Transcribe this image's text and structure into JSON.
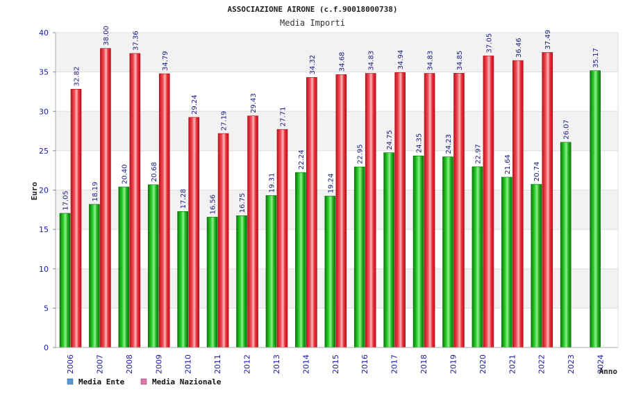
{
  "chart_data": {
    "type": "bar",
    "title": "ASSOCIAZIONE AIRONE (c.f.90018000738)",
    "subtitle": "Media Importi",
    "ylabel": "Euro",
    "xlabel": "Anno",
    "ylim": [
      0,
      40
    ],
    "yticks": [
      "0",
      "5",
      "10",
      "15",
      "20",
      "25",
      "30",
      "35",
      "40"
    ],
    "grid": true,
    "legend_position": "bottom-left",
    "categories": [
      "2006",
      "2007",
      "2008",
      "2009",
      "2010",
      "2011",
      "2012",
      "2013",
      "2014",
      "2015",
      "2016",
      "2017",
      "2018",
      "2019",
      "2020",
      "2021",
      "2022",
      "2023",
      "2024"
    ],
    "series": [
      {
        "name": "Media Ente",
        "color": "#22b222",
        "legend_color": "#5599dd",
        "values": [
          17.05,
          18.19,
          20.4,
          20.68,
          17.28,
          16.56,
          16.75,
          19.31,
          22.24,
          19.24,
          22.95,
          24.75,
          24.35,
          24.23,
          22.97,
          21.64,
          20.74,
          26.07,
          35.17
        ],
        "labels": [
          "17.05",
          "18.19",
          "20.40",
          "20.68",
          "17.28",
          "16.56",
          "16.75",
          "19.31",
          "22.24",
          "19.24",
          "22.95",
          "24.75",
          "24.35",
          "24.23",
          "22.97",
          "21.64",
          "20.74",
          "26.07",
          "35.17"
        ]
      },
      {
        "name": "Media Nazionale",
        "color": "#e8303a",
        "legend_color": "#dd77aa",
        "values": [
          32.82,
          38.0,
          37.36,
          34.79,
          29.24,
          27.19,
          29.43,
          27.71,
          34.32,
          34.68,
          34.83,
          34.94,
          34.83,
          34.85,
          37.05,
          36.46,
          37.49,
          null,
          null
        ],
        "labels": [
          "32.82",
          "38.00",
          "37.36",
          "34.79",
          "29.24",
          "27.19",
          "29.43",
          "27.71",
          "34.32",
          "34.68",
          "34.83",
          "34.94",
          "34.83",
          "34.85",
          "37.05",
          "36.46",
          "37.49",
          null,
          null
        ]
      }
    ]
  }
}
